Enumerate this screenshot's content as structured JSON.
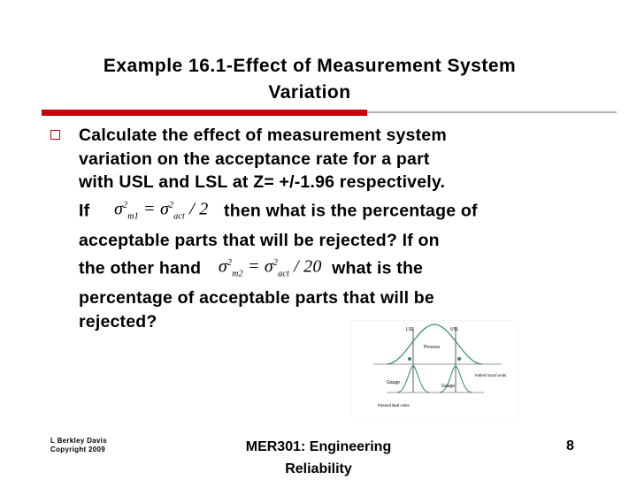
{
  "slide": {
    "title_line1": "Example 16.1-Effect of Measurement System",
    "title_line2": "Variation",
    "body": {
      "line1": "Calculate the effect of measurement system",
      "line2": "variation on the acceptance rate for a part",
      "line3": "with USL and LSL at Z= +/-1.96 respectively.",
      "line4_a": "If",
      "line4_b": "then what is the percentage of",
      "line5": "acceptable parts that will be rejected?  If on",
      "line6_a": "the other hand",
      "line6_b": "what is the",
      "line7": "percentage of acceptable parts that will be",
      "line8": "rejected?"
    },
    "equation1": {
      "lhs_sub": "m1",
      "rhs_sub": "act",
      "op": "= σ",
      "divisor": "/ 2"
    },
    "equation2": {
      "lhs_sub": "m2",
      "rhs_sub": "act",
      "op": "= σ",
      "divisor": "/ 20"
    },
    "figure": {
      "lsl_label": "LSL",
      "usl_label": "USL",
      "process_label": "Process",
      "gauge_left_label": "Gauge",
      "gauge_right_label": "Gauge",
      "passed_bad_label": "Passed Bad Units",
      "failed_good_label": "Failed Good units"
    }
  },
  "footer": {
    "author": "L Berkley Davis",
    "copyright": "Copyright 2009",
    "course_line1": "MER301: Engineering",
    "course_line2": "Reliability",
    "page_number": "8"
  },
  "colors": {
    "accent_red": "#cc0000",
    "rule_gray": "#b0b0b0",
    "curve_green": "#2e8b57"
  }
}
